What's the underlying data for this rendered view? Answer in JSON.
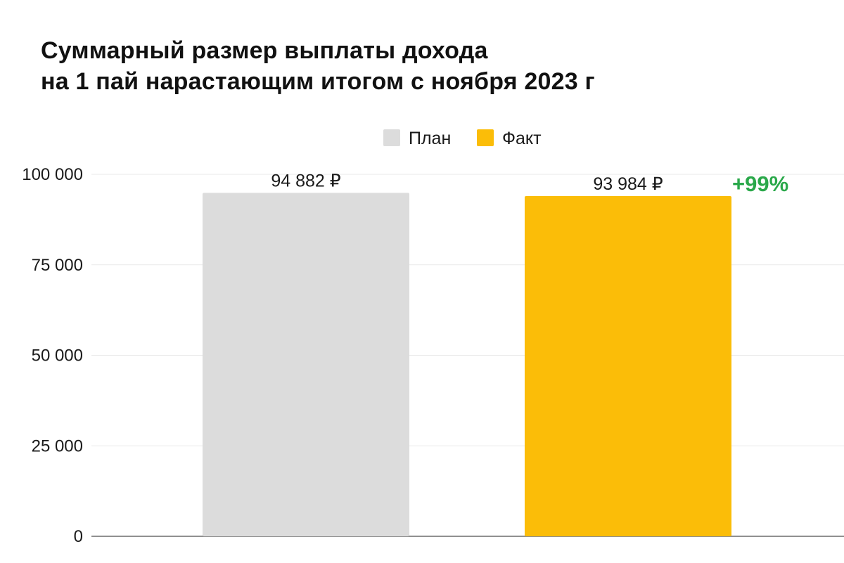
{
  "title": {
    "line1": "Суммарный размер выплаты дохода",
    "line2": "на 1 пай нарастающим итогом с ноября 2023 г"
  },
  "chart_data": {
    "type": "bar",
    "title": "Суммарный размер выплаты дохода на 1 пай нарастающим итогом с ноября 2023 г",
    "categories": [
      "План",
      "Факт"
    ],
    "values": [
      94882,
      93984
    ],
    "data_labels": [
      "94 882 ₽",
      "93 984 ₽"
    ],
    "colors": [
      "#dcdcdc",
      "#fbbd08"
    ],
    "legend": {
      "position": "top-center",
      "items": [
        {
          "label": "План",
          "color": "#dcdcdc"
        },
        {
          "label": "Факт",
          "color": "#fbbd08"
        }
      ]
    },
    "ylim": [
      0,
      100000
    ],
    "yticks": [
      0,
      25000,
      50000,
      75000,
      100000
    ],
    "ytick_labels": [
      "0",
      "25 000",
      "50 000",
      "75 000",
      "100 000"
    ],
    "grid": true,
    "xlabel": "",
    "ylabel": "",
    "annotation": {
      "text": "+99%",
      "color": "#2aa84a",
      "attached_to": "Факт"
    }
  }
}
